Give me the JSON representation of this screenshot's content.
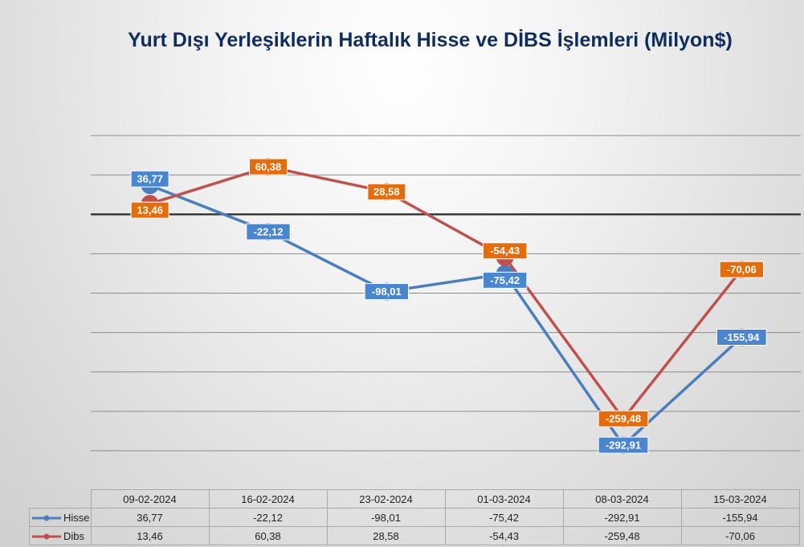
{
  "colors": {
    "hisse": "#4a7ebf",
    "dibs": "#c0504d",
    "hisse_label_bg": "#4a86cf",
    "dibs_label_bg": "#e46c0a",
    "zero_line": "#3a3a3a",
    "grid": "#8c8c8c"
  },
  "chart_data": {
    "type": "line",
    "title": "Yurt Dışı Yerleşiklerin Haftalık Hisse ve DİBS İşlemleri (Milyon$)",
    "categories": [
      "09-02-2024",
      "16-02-2024",
      "23-02-2024",
      "01-03-2024",
      "08-03-2024",
      "15-03-2024"
    ],
    "series": [
      {
        "name": "Hisse",
        "values": [
          36.77,
          -22.12,
          -98.01,
          -75.42,
          -292.91,
          -155.94
        ],
        "labels": [
          "36,77",
          "-22,12",
          "-98,01",
          "-75,42",
          "-292,91",
          "-155,94"
        ]
      },
      {
        "name": "Dibs",
        "values": [
          13.46,
          60.38,
          28.58,
          -54.43,
          -259.48,
          -70.06
        ],
        "labels": [
          "13,46",
          "60,38",
          "28,58",
          "-54,43",
          "-259,48",
          "-70,06"
        ]
      }
    ],
    "ylim": [
      -300,
      100
    ],
    "grid": true,
    "legend": "data-table-below"
  }
}
